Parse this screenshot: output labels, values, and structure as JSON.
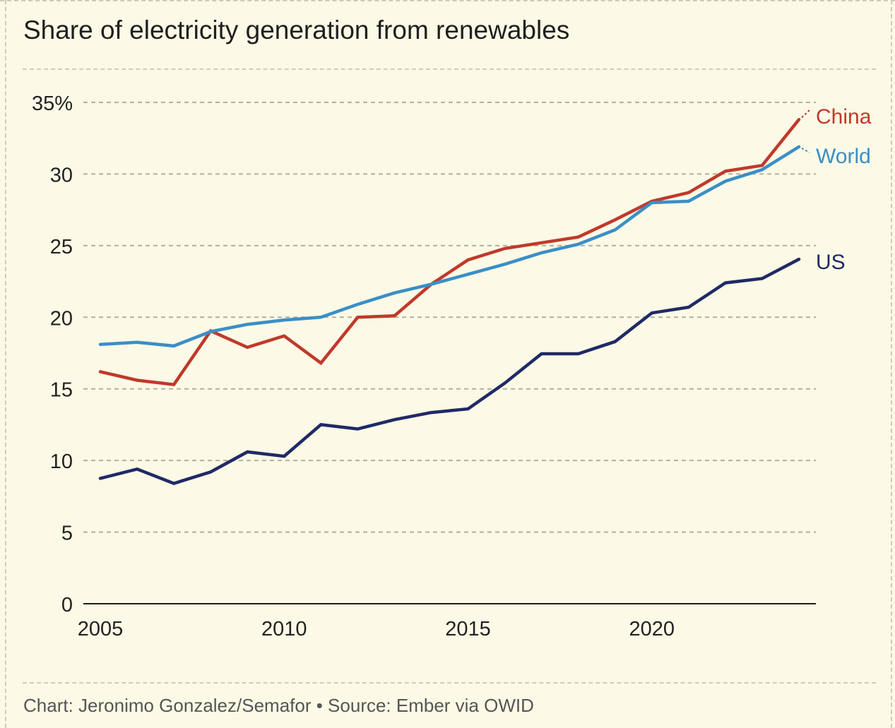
{
  "title": "Share of electricity generation from renewables",
  "footer": "Chart: Jeronimo Gonzalez/Semafor • Source: Ember via OWID",
  "chart_data": {
    "type": "line",
    "title": "Share of electricity generation from renewables",
    "xlabel": "",
    "ylabel": "",
    "x": [
      2005,
      2006,
      2007,
      2008,
      2009,
      2010,
      2011,
      2012,
      2013,
      2014,
      2015,
      2016,
      2017,
      2018,
      2019,
      2020,
      2021,
      2022,
      2023,
      2024
    ],
    "xlim": [
      2005,
      2024
    ],
    "ylim": [
      0,
      35
    ],
    "x_ticks": [
      2005,
      2010,
      2015,
      2020
    ],
    "x_tick_labels": [
      "2005",
      "2010",
      "2015",
      "2020"
    ],
    "y_ticks": [
      0,
      5,
      10,
      15,
      20,
      25,
      30,
      35
    ],
    "y_tick_labels": [
      "0",
      "5",
      "10",
      "15",
      "20",
      "25",
      "30",
      "35%"
    ],
    "grid": "horizontal-dashed",
    "legend": "direct-labels-right",
    "series": [
      {
        "name": "China",
        "color": "#c0392b",
        "values": [
          16.2,
          15.6,
          15.3,
          19.05,
          17.9,
          18.7,
          16.8,
          20.0,
          20.1,
          22.3,
          24.0,
          24.8,
          25.2,
          25.6,
          26.8,
          28.1,
          28.7,
          30.2,
          30.6,
          33.8
        ]
      },
      {
        "name": "World",
        "color": "#3a8fc7",
        "values": [
          18.1,
          18.25,
          18.0,
          19.0,
          19.5,
          19.8,
          20.0,
          20.9,
          21.7,
          22.3,
          23.0,
          23.7,
          24.5,
          25.1,
          26.1,
          28.0,
          28.1,
          29.5,
          30.3,
          31.9
        ]
      },
      {
        "name": "US",
        "color": "#1f2a66",
        "values": [
          8.75,
          9.4,
          8.4,
          9.2,
          10.6,
          10.3,
          12.5,
          12.2,
          12.85,
          13.35,
          13.6,
          15.4,
          17.45,
          17.45,
          18.3,
          20.3,
          20.7,
          22.4,
          22.7,
          24.05
        ]
      }
    ]
  }
}
